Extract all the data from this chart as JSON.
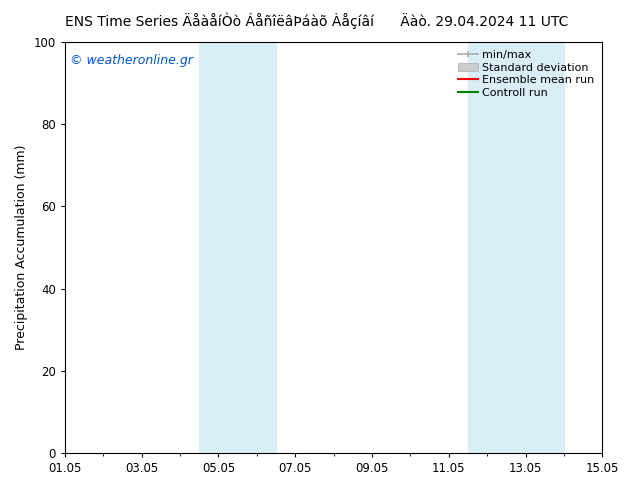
{
  "title": "ENS Time Series ÄåàåíÒò ÁåñîëâÞáàõ Àåçíâí      Äàò. 29.04.2024 11 UTC",
  "ylabel": "Precipitation Accumulation (mm)",
  "ylim": [
    0,
    100
  ],
  "yticks": [
    0,
    20,
    40,
    60,
    80,
    100
  ],
  "background_color": "#ffffff",
  "plot_bg_color": "#ffffff",
  "watermark": "© weatheronline.gr",
  "watermark_color": "#0055cc",
  "xlim": [
    0,
    14
  ],
  "xtick_labels": [
    "01.05",
    "03.05",
    "05.05",
    "07.05",
    "09.05",
    "11.05",
    "13.05",
    "15.05"
  ],
  "xtick_positions": [
    0,
    2,
    4,
    6,
    8,
    10,
    12,
    14
  ],
  "shaded_bands": [
    {
      "x_start": 3.5,
      "x_end": 5.5,
      "color": "#daeef8"
    },
    {
      "x_start": 10.5,
      "x_end": 13.0,
      "color": "#daeef8"
    }
  ],
  "legend_entries": [
    {
      "label": "min/max",
      "color": "#aaaaaa",
      "linewidth": 1.2
    },
    {
      "label": "Standard deviation",
      "color": "#cccccc",
      "linewidth": 6
    },
    {
      "label": "Ensemble mean run",
      "color": "#ff0000",
      "linewidth": 1.5
    },
    {
      "label": "Controll run",
      "color": "#008000",
      "linewidth": 1.5
    }
  ],
  "title_fontsize": 10,
  "tick_fontsize": 8.5,
  "legend_fontsize": 8,
  "ylabel_fontsize": 9,
  "watermark_fontsize": 9
}
